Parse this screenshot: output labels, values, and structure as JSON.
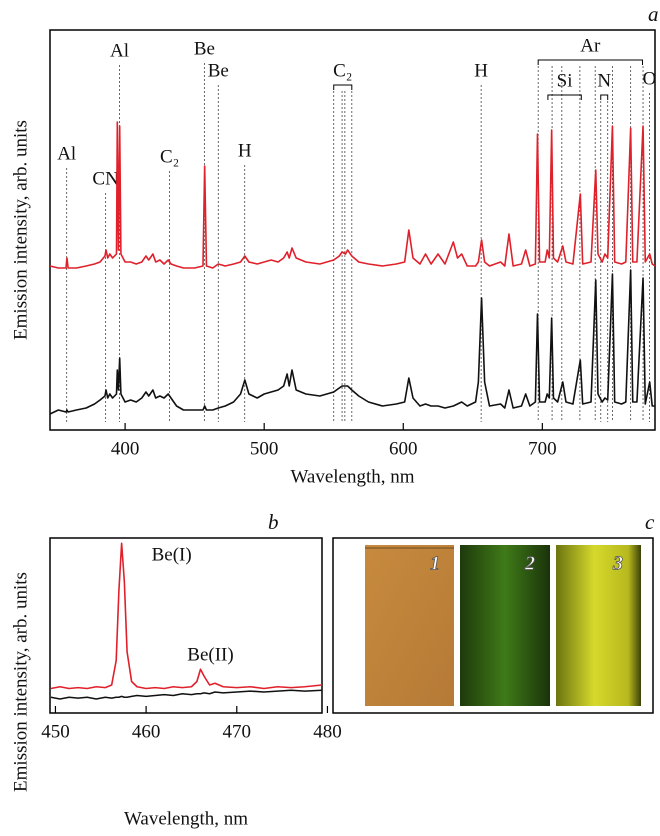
{
  "chart_data": [
    {
      "type": "line",
      "panel_label": "a",
      "xlabel": "Wavelength, nm",
      "ylabel": "Emission intensity, arb. units",
      "xlim": [
        346,
        781
      ],
      "xticks": [
        400,
        500,
        600,
        700
      ],
      "ylim": [
        0,
        100
      ],
      "x": [
        346,
        352,
        357.5,
        358.2,
        359,
        365,
        372,
        378,
        382,
        385.5,
        386.3,
        387.5,
        389,
        391,
        393.8,
        394.4,
        395.2,
        396.1,
        397,
        400,
        404,
        408,
        412,
        415,
        417,
        420,
        422,
        425,
        428,
        431,
        433,
        437,
        442,
        450,
        456,
        457.2,
        458.5,
        463,
        467,
        472,
        478,
        483,
        486.1,
        489,
        495,
        500,
        505,
        510,
        514,
        516.5,
        518,
        520,
        523,
        530,
        540,
        550,
        554,
        556,
        558.5,
        560,
        563,
        568,
        575,
        585,
        595,
        601,
        604,
        607,
        612,
        616,
        620,
        625,
        630,
        636,
        639,
        642,
        646,
        652,
        654,
        656.3,
        658.5,
        662,
        670,
        673,
        676,
        679,
        685,
        688,
        691,
        695,
        696.5,
        698,
        702,
        703.5,
        705,
        706.7,
        708,
        711,
        714.7,
        717,
        722,
        727.3,
        729,
        735,
        738.4,
        740,
        743,
        745,
        747,
        750.4,
        752,
        757,
        760,
        763.5,
        765,
        768,
        772.4,
        774,
        777.2,
        779,
        781
      ],
      "series": [
        {
          "color": "#e0202a",
          "values": [
            41,
            40.5,
            40.5,
            43,
            40.5,
            40.5,
            41,
            41.5,
            42,
            43.5,
            45,
            43,
            44,
            43,
            44,
            77,
            45,
            76,
            44,
            42,
            42,
            41.5,
            42,
            43.5,
            42.5,
            44,
            42,
            42.5,
            41.5,
            42.5,
            41.5,
            41,
            40.5,
            40.5,
            41,
            66,
            41,
            40.5,
            41.5,
            41,
            41.5,
            42,
            43.5,
            42,
            41.5,
            42,
            42.5,
            42,
            43,
            44.5,
            43,
            45.5,
            43,
            42,
            41.5,
            42.5,
            43.5,
            44.5,
            44,
            45,
            43.5,
            42,
            41.5,
            41,
            41.5,
            42,
            50,
            43,
            41.5,
            44,
            41.5,
            44,
            41.5,
            47,
            43,
            44,
            41,
            41,
            42,
            47.5,
            42,
            41,
            42,
            41,
            49,
            41,
            41.5,
            45,
            41,
            41.5,
            74,
            42,
            42,
            45,
            43,
            75,
            43,
            42,
            46,
            42,
            41.5,
            59,
            41.5,
            42,
            65,
            44,
            42,
            44,
            43,
            76,
            42,
            41.5,
            42,
            75.5,
            42,
            42,
            76,
            42,
            44,
            41.5,
            41
          ]
        },
        {
          "color": "#111111",
          "values": [
            4,
            5,
            4.5,
            5,
            4.5,
            5,
            5.5,
            6.5,
            7.5,
            8.5,
            10,
            8,
            9,
            8,
            9,
            15,
            10,
            18,
            9,
            7,
            7.5,
            7,
            8,
            9.5,
            8.5,
            10,
            8,
            8.5,
            8,
            9,
            8,
            6,
            5,
            5,
            5,
            6,
            5,
            5,
            5.5,
            6,
            7,
            9,
            12.5,
            9,
            8,
            9,
            9.5,
            10,
            11,
            14,
            11,
            15,
            10,
            9,
            8.5,
            9.5,
            10.5,
            11,
            11,
            11,
            10,
            8.5,
            7,
            6,
            6.5,
            7,
            13,
            8,
            6,
            6.5,
            6,
            6,
            5.5,
            6,
            6.5,
            7,
            6,
            7,
            12,
            33,
            12,
            6,
            6.5,
            5.5,
            10,
            5.5,
            6,
            9,
            6,
            7,
            29,
            7,
            7,
            9,
            8,
            28,
            8,
            7,
            12,
            7,
            6.5,
            17.5,
            6.5,
            7,
            37.5,
            9,
            7,
            8,
            7.5,
            39,
            7,
            6.5,
            7,
            40,
            7,
            7,
            38,
            6.5,
            12,
            6,
            6
          ]
        }
      ],
      "markers": [
        {
          "label": "Al",
          "x": 358
        },
        {
          "label": "CN",
          "x": 386
        },
        {
          "label": "Al",
          "x": 396
        },
        {
          "label": "C₂",
          "x": 432
        },
        {
          "label": "Be",
          "x": 457
        },
        {
          "label": "Be",
          "x": 467
        },
        {
          "label": "H",
          "x": 486
        },
        {
          "label": "H",
          "x": 656
        },
        {
          "label": "O",
          "x": 777
        }
      ],
      "brackets": [
        {
          "label": "C₂",
          "from": 550,
          "to": 563,
          "lines": [
            550,
            556,
            558,
            563
          ]
        },
        {
          "label": "Ar",
          "from": 697,
          "to": 772,
          "lines": [
            697,
            707,
            714,
            727,
            738,
            750.4,
            763.5,
            772.4
          ]
        },
        {
          "label": "Si",
          "from": 704,
          "to": 728,
          "lines": []
        },
        {
          "label": "N",
          "from": 742,
          "to": 747,
          "lines": [
            742,
            747
          ]
        }
      ]
    },
    {
      "type": "line",
      "panel_label": "b",
      "xlabel": "Wavelength, nm",
      "ylabel": "Emission intensity, arb. units",
      "xlim": [
        449.4,
        479.4
      ],
      "xticks": [
        450,
        460,
        470,
        480
      ],
      "ylim": [
        0,
        100
      ],
      "x": [
        449.5,
        450.5,
        451.5,
        452.5,
        453.5,
        454.5,
        455.5,
        456.2,
        456.7,
        457.0,
        457.3,
        457.6,
        457.9,
        458.4,
        459,
        460,
        461,
        462,
        463,
        464,
        465,
        465.6,
        466.0,
        466.4,
        467,
        467.6,
        468.5,
        470,
        471.5,
        473,
        474.5,
        476,
        477.5,
        479.4
      ],
      "series": [
        {
          "color": "#e0202a",
          "values": [
            14,
            15,
            14,
            14.5,
            14,
            15,
            14.5,
            16,
            30,
            70,
            97,
            75,
            35,
            18,
            15,
            14,
            14.5,
            14,
            15,
            14.5,
            15,
            18,
            25,
            21,
            16,
            17,
            15,
            14.5,
            15,
            14,
            15,
            14.5,
            15,
            16
          ]
        },
        {
          "color": "#111111",
          "values": [
            9,
            8,
            9,
            8.5,
            9,
            8,
            9,
            8.5,
            9,
            9,
            9.5,
            9,
            9,
            9.5,
            10,
            9.5,
            10,
            10.5,
            10,
            11,
            10.5,
            11,
            11,
            11.5,
            11,
            12,
            11.5,
            12,
            12.5,
            12,
            12.5,
            13,
            12.5,
            13
          ]
        }
      ],
      "annotations": [
        {
          "label": "Be(I)",
          "x": 457.3
        },
        {
          "label": "Be(II)",
          "x": 466
        }
      ]
    }
  ],
  "panel_c": {
    "panel_label": "c",
    "labels": [
      "1",
      "2",
      "3"
    ]
  }
}
